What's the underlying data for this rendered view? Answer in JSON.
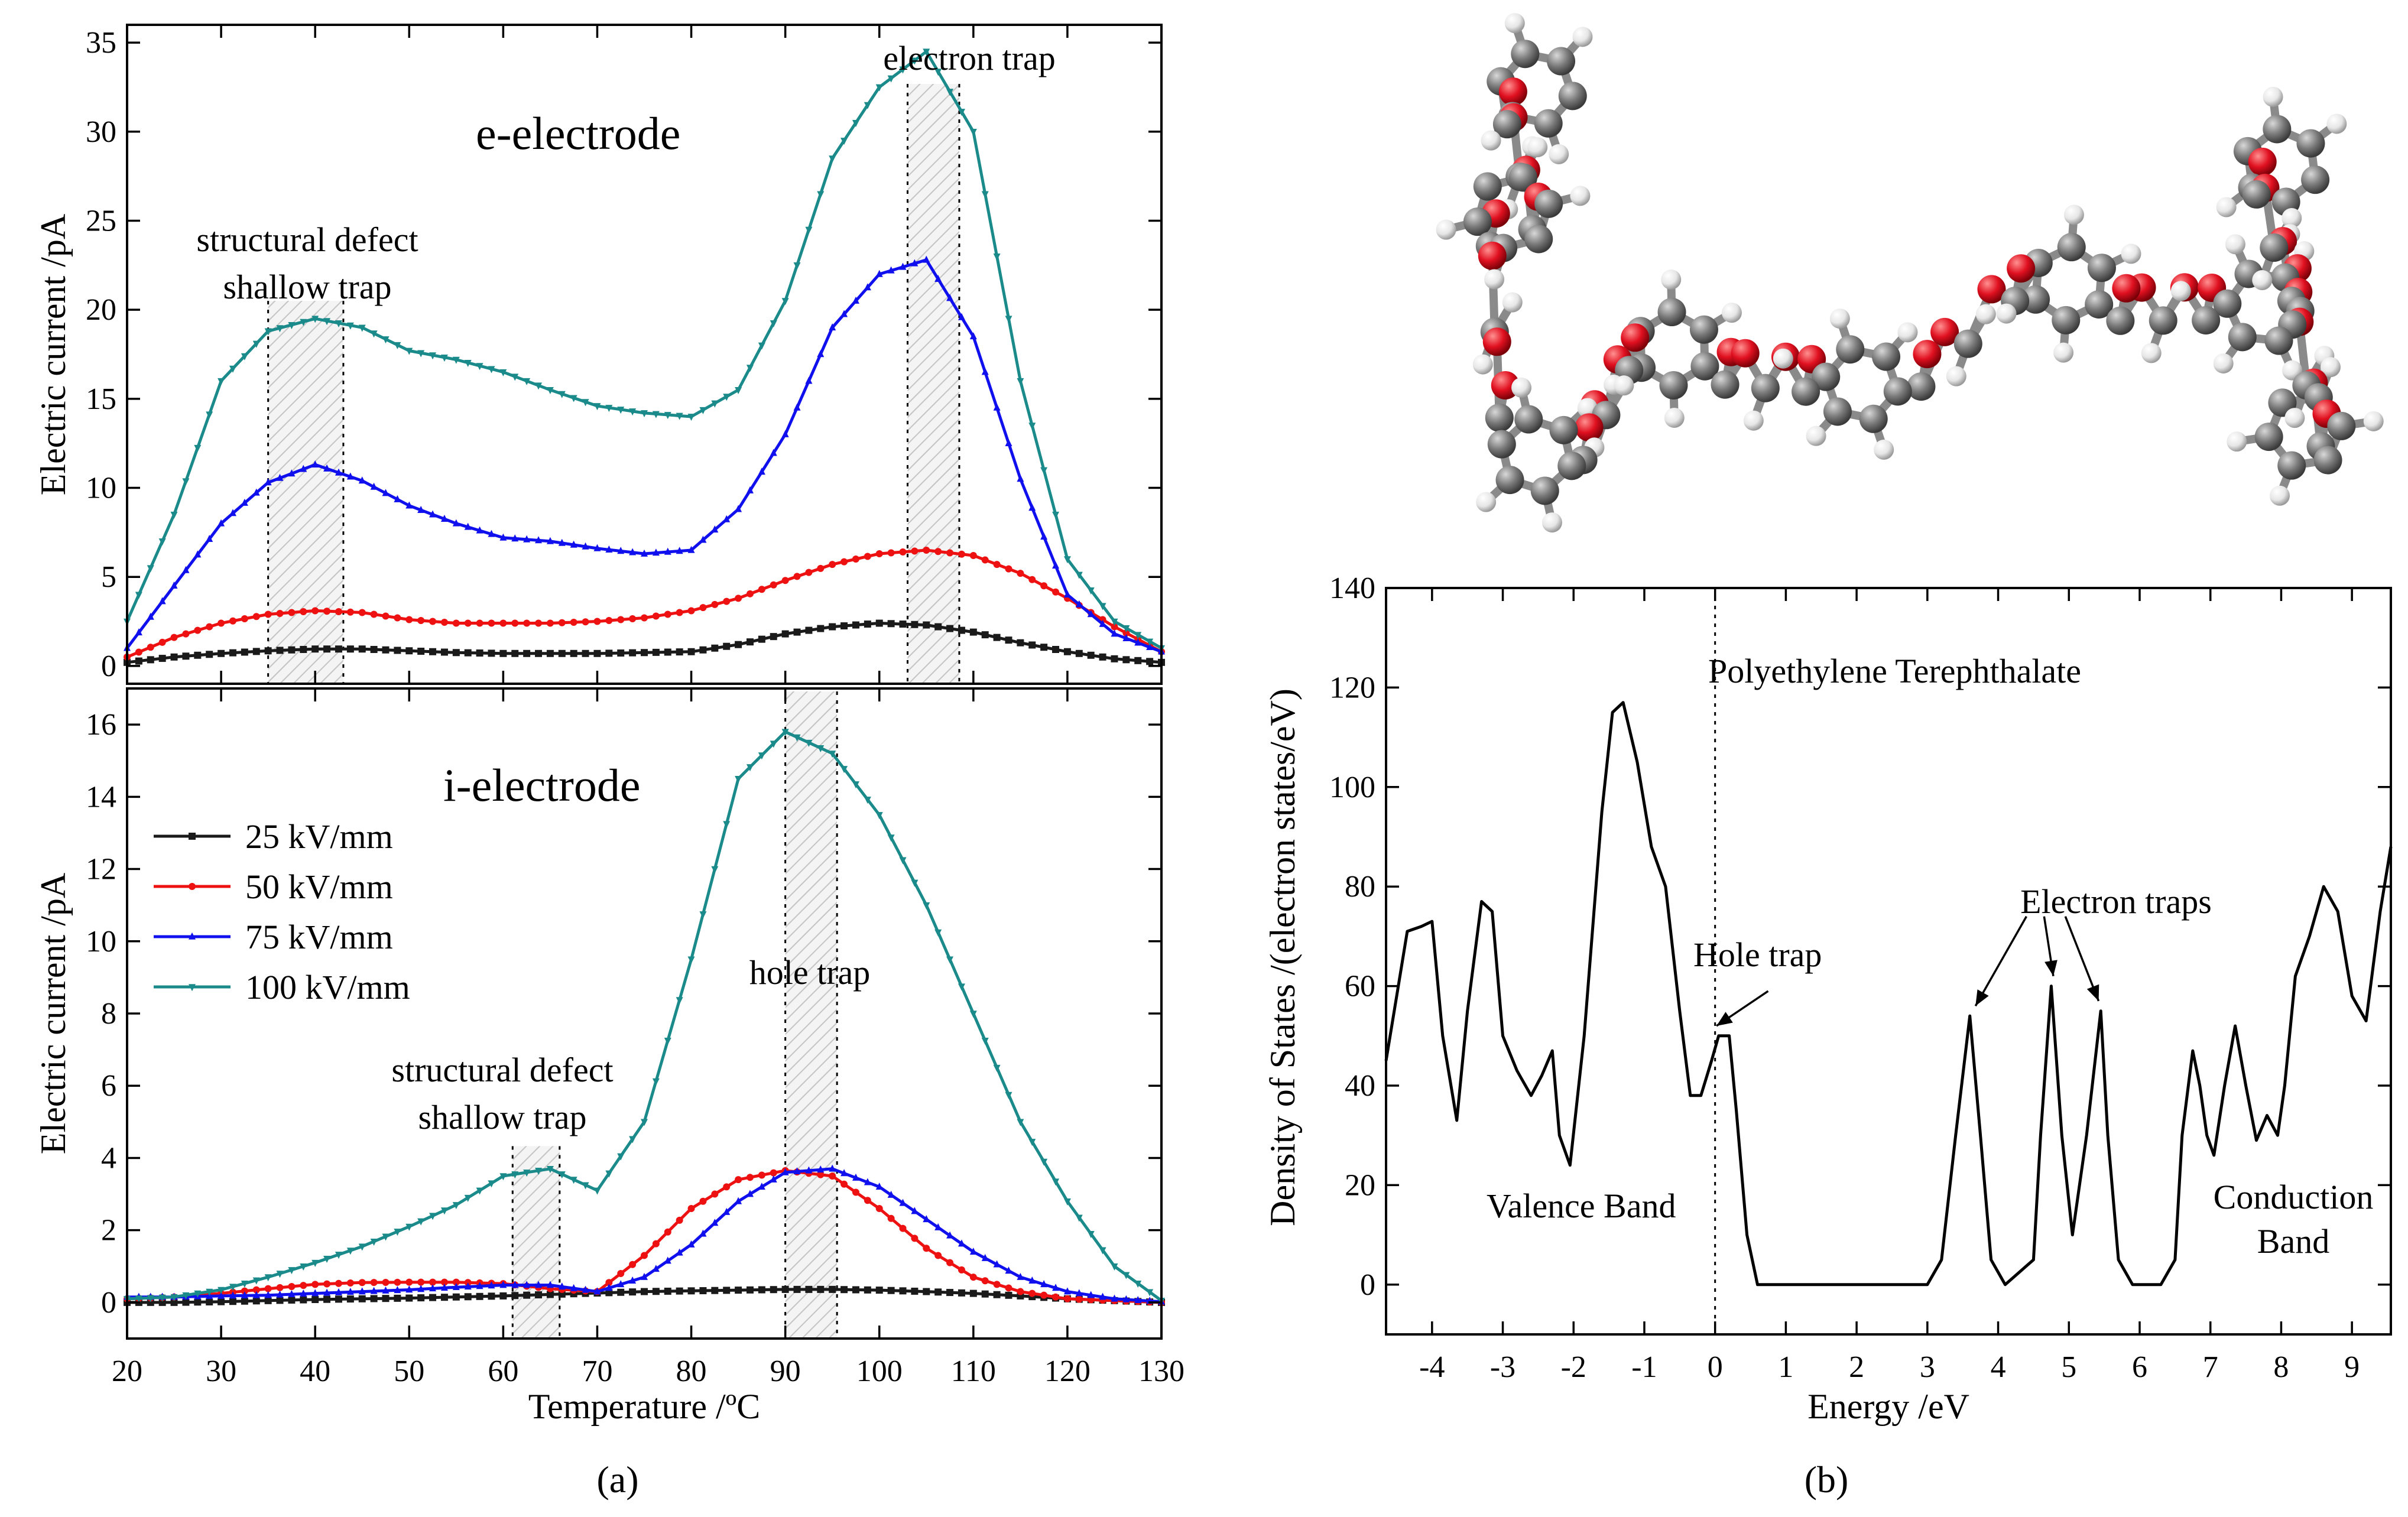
{
  "panel_labels": {
    "a": "(a)",
    "b": "(b)"
  },
  "colors": {
    "25": "#1a1a1a",
    "50": "#ee1111",
    "75": "#1010ee",
    "100": "#1a8a8a",
    "dos": "#000000",
    "atom_carbon": "#707070",
    "atom_oxygen": "#e01020",
    "atom_hydrogen": "#e8e8e8"
  },
  "chart_data": [
    {
      "id": "tsc-e-electrode",
      "type": "line",
      "title": "e-electrode",
      "xlabel": "",
      "ylabel": "Electric current /pA",
      "xlim": [
        20,
        130
      ],
      "ylim": [
        -1,
        36
      ],
      "yticks": [
        0,
        5,
        10,
        15,
        20,
        25,
        30,
        35
      ],
      "x": [
        20,
        25,
        30,
        35,
        40,
        45,
        50,
        55,
        60,
        65,
        70,
        75,
        80,
        85,
        90,
        95,
        100,
        105,
        110,
        115,
        120,
        125,
        130
      ],
      "series": [
        {
          "name": "25 kV/mm",
          "color_key": "25",
          "marker": "square",
          "values": [
            0.2,
            0.5,
            0.7,
            0.85,
            0.95,
            0.95,
            0.85,
            0.75,
            0.7,
            0.7,
            0.7,
            0.75,
            0.8,
            1.2,
            1.8,
            2.2,
            2.4,
            2.3,
            1.9,
            1.3,
            0.8,
            0.4,
            0.2
          ]
        },
        {
          "name": "50 kV/mm",
          "color_key": "50",
          "marker": "circle",
          "values": [
            0.5,
            1.6,
            2.4,
            2.9,
            3.1,
            3.0,
            2.6,
            2.4,
            2.4,
            2.4,
            2.5,
            2.7,
            3.1,
            3.8,
            4.8,
            5.7,
            6.3,
            6.5,
            6.2,
            5.2,
            3.8,
            2.2,
            0.8
          ]
        },
        {
          "name": "75 kV/mm",
          "color_key": "75",
          "marker": "triangle-up",
          "values": [
            1.0,
            4.5,
            8.0,
            10.3,
            11.3,
            10.4,
            9.0,
            8.0,
            7.2,
            7.0,
            6.6,
            6.3,
            6.5,
            8.8,
            13.0,
            19.0,
            22.0,
            22.8,
            18.5,
            10.5,
            4.0,
            1.8,
            0.8
          ]
        },
        {
          "name": "100 kV/mm",
          "color_key": "100",
          "marker": "triangle-down",
          "values": [
            2.5,
            8.5,
            16.0,
            18.8,
            19.5,
            19.0,
            17.7,
            17.2,
            16.5,
            15.5,
            14.6,
            14.2,
            14.0,
            15.5,
            20.5,
            28.5,
            32.5,
            34.5,
            30.0,
            16.0,
            6.0,
            2.5,
            1.0
          ]
        }
      ],
      "highlight_bands": [
        {
          "x": [
            35,
            43
          ]
        },
        {
          "x": [
            103,
            108.5
          ]
        }
      ],
      "annotations": {
        "panel_title": "e-electrode",
        "shallow_trap_line1": "structural defect",
        "shallow_trap_line2": "shallow trap",
        "electron_trap": "electron trap"
      }
    },
    {
      "id": "tsc-i-electrode",
      "type": "line",
      "title": "i-electrode",
      "xlabel": "Temperature /ºC",
      "ylabel": "Electric current /pA",
      "xlim": [
        20,
        130
      ],
      "ylim": [
        -1,
        17
      ],
      "xticks": [
        20,
        30,
        40,
        50,
        60,
        70,
        80,
        90,
        100,
        110,
        120,
        130
      ],
      "yticks": [
        0,
        2,
        4,
        6,
        8,
        10,
        12,
        14,
        16
      ],
      "x": [
        20,
        25,
        30,
        35,
        40,
        45,
        50,
        55,
        60,
        65,
        70,
        75,
        80,
        85,
        90,
        95,
        100,
        105,
        110,
        115,
        120,
        125,
        130
      ],
      "series": [
        {
          "name": "25 kV/mm",
          "color_key": "25",
          "marker": "square",
          "values": [
            0.0,
            0.0,
            0.02,
            0.05,
            0.08,
            0.1,
            0.12,
            0.15,
            0.18,
            0.22,
            0.26,
            0.3,
            0.32,
            0.34,
            0.36,
            0.36,
            0.34,
            0.3,
            0.25,
            0.18,
            0.1,
            0.05,
            0.0
          ]
        },
        {
          "name": "50 kV/mm",
          "color_key": "50",
          "marker": "circle",
          "values": [
            0.1,
            0.15,
            0.25,
            0.38,
            0.5,
            0.55,
            0.56,
            0.56,
            0.52,
            0.38,
            0.3,
            1.3,
            2.6,
            3.4,
            3.65,
            3.5,
            2.6,
            1.5,
            0.7,
            0.3,
            0.1,
            0.05,
            0.0
          ]
        },
        {
          "name": "75 kV/mm",
          "color_key": "75",
          "marker": "triangle-up",
          "values": [
            0.15,
            0.15,
            0.18,
            0.2,
            0.25,
            0.3,
            0.35,
            0.42,
            0.48,
            0.48,
            0.3,
            0.7,
            1.6,
            2.8,
            3.6,
            3.7,
            3.2,
            2.3,
            1.4,
            0.7,
            0.3,
            0.1,
            0.02
          ]
        },
        {
          "name": "100 kV/mm",
          "color_key": "100",
          "marker": "triangle-down",
          "values": [
            0.1,
            0.15,
            0.35,
            0.7,
            1.1,
            1.55,
            2.1,
            2.7,
            3.5,
            3.7,
            3.1,
            5.0,
            9.5,
            14.5,
            15.8,
            15.2,
            13.5,
            11.0,
            8.0,
            5.0,
            2.8,
            1.0,
            0.05
          ]
        }
      ],
      "highlight_bands": [
        {
          "x": [
            61,
            66
          ]
        },
        {
          "x": [
            90,
            95.5
          ]
        }
      ],
      "legend": {
        "placement": "middle-left",
        "entries": [
          "25 kV/mm",
          "50 kV/mm",
          "75 kV/mm",
          "100 kV/mm"
        ]
      },
      "annotations": {
        "panel_title": "i-electrode",
        "shallow_trap_line1": "structural defect",
        "shallow_trap_line2": "shallow trap",
        "hole_trap": "hole trap"
      }
    },
    {
      "id": "pet-density-of-states",
      "type": "line",
      "title": "Polyethylene Terephthalate",
      "xlabel": "Energy /eV",
      "ylabel": "Density of States /(electron states/eV)",
      "xlim": [
        -4.65,
        9.55
      ],
      "ylim": [
        -10,
        140
      ],
      "xticks": [
        -4,
        -3,
        -2,
        -1,
        0,
        1,
        2,
        3,
        4,
        5,
        6,
        7,
        8,
        9
      ],
      "yticks": [
        0,
        20,
        40,
        60,
        80,
        100,
        120,
        140
      ],
      "fermi_level_x": 0,
      "series": [
        {
          "name": "DOS",
          "color_key": "dos",
          "x": [
            -4.65,
            -4.5,
            -4.35,
            -4.15,
            -4.0,
            -3.85,
            -3.65,
            -3.5,
            -3.3,
            -3.15,
            -3.0,
            -2.8,
            -2.6,
            -2.45,
            -2.3,
            -2.2,
            -2.05,
            -1.85,
            -1.6,
            -1.45,
            -1.3,
            -1.1,
            -0.9,
            -0.7,
            -0.5,
            -0.35,
            -0.2,
            -0.05,
            0.05,
            0.2,
            0.3,
            0.45,
            0.6,
            1.0,
            2.0,
            3.0,
            3.2,
            3.4,
            3.6,
            3.75,
            3.9,
            4.1,
            4.5,
            4.6,
            4.75,
            4.9,
            5.05,
            5.25,
            5.45,
            5.55,
            5.7,
            5.9,
            6.3,
            6.5,
            6.6,
            6.75,
            6.85,
            6.95,
            7.05,
            7.2,
            7.35,
            7.5,
            7.65,
            7.8,
            7.95,
            8.05,
            8.2,
            8.4,
            8.6,
            8.8,
            9.0,
            9.2,
            9.4,
            9.55
          ],
          "values": [
            45,
            58,
            71,
            72,
            73,
            50,
            33,
            55,
            77,
            75,
            50,
            43,
            38,
            42,
            47,
            30,
            24,
            50,
            95,
            115,
            117,
            105,
            88,
            80,
            55,
            38,
            38,
            45,
            50,
            50,
            35,
            10,
            0,
            0,
            0,
            0,
            5,
            30,
            54,
            30,
            5,
            0,
            5,
            30,
            60,
            30,
            10,
            30,
            55,
            30,
            5,
            0,
            0,
            5,
            30,
            47,
            40,
            30,
            26,
            40,
            52,
            40,
            29,
            34,
            30,
            40,
            62,
            70,
            80,
            75,
            58,
            53,
            75,
            88
          ]
        }
      ],
      "annotations": {
        "hole_trap": "Hole trap",
        "electron_traps": "Electron traps",
        "valence_band": "Valence Band",
        "conduction_band_line1": "Conduction",
        "conduction_band_line2": "Band"
      }
    }
  ]
}
